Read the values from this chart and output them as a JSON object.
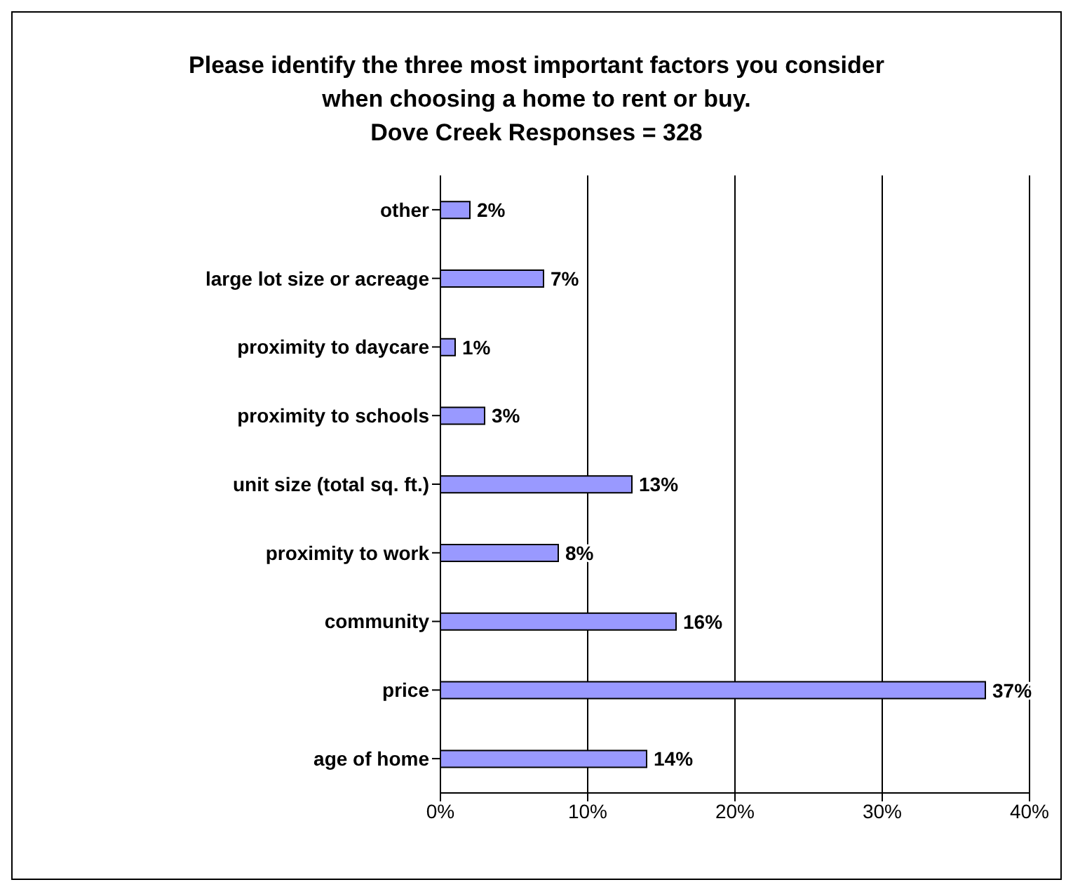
{
  "chart_data": {
    "type": "bar",
    "orientation": "horizontal",
    "title": "Please identify the three most important factors you consider when choosing a home to rent or buy.\nDove Creek Responses = 328",
    "categories": [
      "other",
      "large lot size or acreage",
      "proximity to daycare",
      "proximity to schools",
      "unit size (total sq. ft.)",
      "proximity to work",
      "community",
      "price",
      "age of home"
    ],
    "values": [
      2,
      7,
      1,
      3,
      13,
      8,
      16,
      37,
      14
    ],
    "value_labels": [
      "2%",
      "7%",
      "1%",
      "3%",
      "13%",
      "8%",
      "16%",
      "37%",
      "14%"
    ],
    "color": "#9999ff",
    "xlim": [
      0,
      40
    ],
    "xticks": [
      {
        "value": 0,
        "label": "0%"
      },
      {
        "value": 10,
        "label": "10%"
      },
      {
        "value": 20,
        "label": "20%"
      },
      {
        "value": 30,
        "label": "30%"
      },
      {
        "value": 40,
        "label": "40%"
      }
    ],
    "grid": "x",
    "legend": false
  }
}
